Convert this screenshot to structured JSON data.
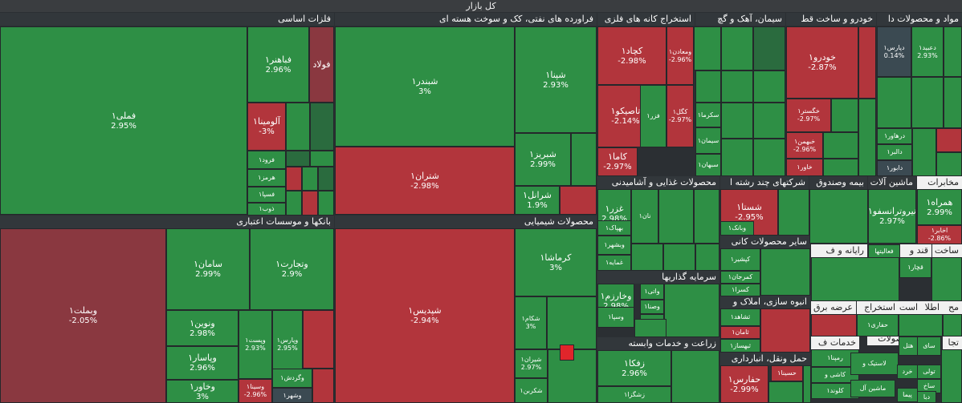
{
  "title": "کل بازار",
  "colors": {
    "green": "#2e8f45",
    "green_dark": "#2a6b3e",
    "red": "#b2353c",
    "red_dark": "#8a3840",
    "neutral": "#3b4a52",
    "bright_red": "#e0252b",
    "header_bg": "#32373b",
    "header_light": "#f1f1f1"
  },
  "sectors": [
    "فلزات اساسی",
    "فراورده های نفتی، کک و سوخت هسته ای",
    "استخراج کانه های فلزی",
    "سیمان، آهک و گچ",
    "خودرو و ساخت قط",
    "مواد و محصولات دا",
    "بانکها و موسسات اعتباری",
    "محصولات شیمیایی",
    "محصولات غذایی و آشامیدنی",
    "شرکتهای چند رشته ا",
    "بیمه وصندوق",
    "ماشین آلات",
    "مخابرات",
    "سایر محصولات کانی",
    "سرمایه گذاریها",
    "انبوه سازی، املاک و",
    "زراعت و خدمات وابسته",
    "حمل ونقل، انبارداری",
    "فلزات",
    "قند و",
    "رایانه و ف",
    "ساخت",
    "خدمات ف",
    "محصولات",
    "استخراج",
    "عرضه برق",
    "است",
    "اطلا",
    "مح",
    "تجا"
  ],
  "chart_data": {
    "type": "treemap",
    "title": "کل بازار",
    "unit": "%",
    "items": [
      {
        "sector": "فلزات اساسی",
        "symbol": "فملی۱",
        "value": 2.95
      },
      {
        "sector": "فلزات اساسی",
        "symbol": "فباهنر۱",
        "value": 2.96
      },
      {
        "sector": "فلزات اساسی",
        "symbol": "فولاد",
        "value": null
      },
      {
        "sector": "فلزات اساسی",
        "symbol": "آلومینا۱",
        "value": -3
      },
      {
        "sector": "فلزات اساسی",
        "symbol": "فرود۱",
        "value": null
      },
      {
        "sector": "فلزات اساسی",
        "symbol": "هرمز۱",
        "value": null
      },
      {
        "sector": "فلزات اساسی",
        "symbol": "فسپا۱",
        "value": null
      },
      {
        "sector": "فلزات اساسی",
        "symbol": "ذوب۱",
        "value": null
      },
      {
        "sector": "فراورده های نفتی، کک و سوخت هسته ای",
        "symbol": "شبندر۱",
        "value": 3
      },
      {
        "sector": "فراورده های نفتی، کک و سوخت هسته ای",
        "symbol": "شتران۱",
        "value": -2.98
      },
      {
        "sector": "فراورده های نفتی، کک و سوخت هسته ای",
        "symbol": "شپنا۱",
        "value": 2.93
      },
      {
        "sector": "فراورده های نفتی، کک و سوخت هسته ای",
        "symbol": "شبریز۱",
        "value": 2.99
      },
      {
        "sector": "فراورده های نفتی، کک و سوخت هسته ای",
        "symbol": "شرانل۱",
        "value": 1.9
      },
      {
        "sector": "استخراج کانه های فلزی",
        "symbol": "کچاد۱",
        "value": -2.98
      },
      {
        "sector": "استخراج کانه های فلزی",
        "symbol": "ومعادن۱",
        "value": -2.96
      },
      {
        "sector": "استخراج کانه های فلزی",
        "symbol": "تاصیکو۱",
        "value": -2.14
      },
      {
        "sector": "استخراج کانه های فلزی",
        "symbol": "فزر۱",
        "value": null
      },
      {
        "sector": "استخراج کانه های فلزی",
        "symbol": "کگل۱",
        "value": -2.97
      },
      {
        "sector": "استخراج کانه های فلزی",
        "symbol": "کاما۱",
        "value": -2.97
      },
      {
        "sector": "سیمان، آهک و گچ",
        "symbol": "سکرما۱",
        "value": null
      },
      {
        "sector": "سیمان، آهک و گچ",
        "symbol": "سیمان۱",
        "value": null
      },
      {
        "sector": "سیمان، آهک و گچ",
        "symbol": "سبهان۱",
        "value": null
      },
      {
        "sector": "خودرو و ساخت قط",
        "symbol": "خودرو۱",
        "value": -2.87
      },
      {
        "sector": "خودرو و ساخت قط",
        "symbol": "خگستر۱",
        "value": -2.97
      },
      {
        "sector": "خودرو و ساخت قط",
        "symbol": "خبهمن۱",
        "value": -2.96
      },
      {
        "sector": "خودرو و ساخت قط",
        "symbol": "خاور۱",
        "value": null
      },
      {
        "sector": "خودرو و ساخت قط",
        "symbol": "درهاور۱",
        "value": null
      },
      {
        "sector": "خودرو و ساخت قط",
        "symbol": "دالبر۱",
        "value": null
      },
      {
        "sector": "خودرو و ساخت قط",
        "symbol": "دابور۱",
        "value": null
      },
      {
        "sector": "مواد و محصولات دا",
        "symbol": "دپارس۱",
        "value": 0.14
      },
      {
        "sector": "مواد و محصولات دا",
        "symbol": "دعبید۱",
        "value": 2.93
      },
      {
        "sector": "بانکها و موسسات اعتباری",
        "symbol": "وبملت۱",
        "value": -2.05
      },
      {
        "sector": "بانکها و موسسات اعتباری",
        "symbol": "سامان۱",
        "value": 2.99
      },
      {
        "sector": "بانکها و موسسات اعتباری",
        "symbol": "وتجارت۱",
        "value": 2.9
      },
      {
        "sector": "بانکها و موسسات اعتباری",
        "symbol": "ونوین۱",
        "value": 2.98
      },
      {
        "sector": "بانکها و موسسات اعتباری",
        "symbol": "وپاسار۱",
        "value": 2.96
      },
      {
        "sector": "بانکها و موسسات اعتباری",
        "symbol": "وخاور۱",
        "value": 3
      },
      {
        "sector": "بانکها و موسسات اعتباری",
        "symbol": "وپست۱",
        "value": 2.93
      },
      {
        "sector": "بانکها و موسسات اعتباری",
        "symbol": "وپارس۱",
        "value": 2.95
      },
      {
        "sector": "بانکها و موسسات اعتباری",
        "symbol": "وسینا۱",
        "value": -2.96
      },
      {
        "sector": "بانکها و موسسات اعتباری",
        "symbol": "وگردش۱",
        "value": null
      },
      {
        "sector": "بانکها و موسسات اعتباری",
        "symbol": "وشهر۱",
        "value": null
      },
      {
        "sector": "محصولات شیمیایی",
        "symbol": "شپدیس۱",
        "value": -2.94
      },
      {
        "sector": "محصولات شیمیایی",
        "symbol": "کرماشا۱",
        "value": 3
      },
      {
        "sector": "محصولات شیمیایی",
        "symbol": "شکام۱",
        "value": 3
      },
      {
        "sector": "محصولات شیمیایی",
        "symbol": "شیران۱",
        "value": 2.97
      },
      {
        "sector": "محصولات شیمیایی",
        "symbol": "شکربن۱",
        "value": null
      },
      {
        "sector": "محصولات غذایی و آشامیدنی",
        "symbol": "غزر۱",
        "value": 2.98
      },
      {
        "sector": "محصولات غذایی و آشامیدنی",
        "symbol": "نان۱",
        "value": null
      },
      {
        "sector": "محصولات غذایی و آشامیدنی",
        "symbol": "بهپاک۱",
        "value": null
      },
      {
        "sector": "محصولات غذایی و آشامیدنی",
        "symbol": "وبشهر۱",
        "value": null
      },
      {
        "sector": "محصولات غذایی و آشامیدنی",
        "symbol": "غمایه۱",
        "value": null
      },
      {
        "sector": "شرکتهای چند رشته ا",
        "symbol": "شستا۱",
        "value": -2.95
      },
      {
        "sector": "شرکتهای چند رشته ا",
        "symbol": "وبانک۱",
        "value": null
      },
      {
        "sector": "ماشین آلات",
        "symbol": "نیروترانسفو۱",
        "value": 2.97
      },
      {
        "sector": "مخابرات",
        "symbol": "همراه۱",
        "value": 2.99
      },
      {
        "sector": "مخابرات",
        "symbol": "اخابر۱",
        "value": -2.86
      },
      {
        "sector": "سایر محصولات کانی",
        "symbol": "کپشیر۱",
        "value": null
      },
      {
        "sector": "سایر محصولات کانی",
        "symbol": "کمرجان۱",
        "value": null
      },
      {
        "sector": "سایر محصولات کانی",
        "symbol": "کسرا۱",
        "value": null
      },
      {
        "sector": "سرمایه گذاریها",
        "symbol": "وخارزم۱",
        "value": 2.98
      },
      {
        "sector": "سرمایه گذاریها",
        "symbol": "وسپا۱",
        "value": null
      },
      {
        "sector": "سرمایه گذاریها",
        "symbol": "واتی۱",
        "value": null
      },
      {
        "sector": "سرمایه گذاریها",
        "symbol": "وصنا۱",
        "value": null
      },
      {
        "sector": "سرمایه گذاریها",
        "symbol": "صبا۱",
        "value": null
      },
      {
        "sector": "انبوه سازی، املاک و",
        "symbol": "ثشاهد۱",
        "value": null
      },
      {
        "sector": "انبوه سازی، املاک و",
        "symbol": "ثامان۱",
        "value": null
      },
      {
        "sector": "انبوه سازی، املاک و",
        "symbol": "ثبهساز۱",
        "value": null
      },
      {
        "sector": "زراعت و خدمات وابسته",
        "symbol": "زفکا۱",
        "value": 2.96
      },
      {
        "sector": "زراعت و خدمات وابسته",
        "symbol": "زشگزا۱",
        "value": null
      },
      {
        "sector": "حمل ونقل، انبارداری",
        "symbol": "حفارس۱",
        "value": -2.99
      },
      {
        "sector": "حمل ونقل، انبارداری",
        "symbol": "حسینا۱",
        "value": null
      },
      {
        "sector": "فلزات",
        "symbol": "فعالیتها",
        "value": null
      },
      {
        "sector": "قند و",
        "symbol": "قچار۱",
        "value": null
      },
      {
        "sector": "استخراج",
        "symbol": "حفاری۱",
        "value": null
      },
      {
        "sector": "خدمات ف",
        "symbol": "رمپنا۱",
        "value": null
      },
      {
        "sector": "خدمات ف",
        "symbol": "کاشی و",
        "value": null
      },
      {
        "sector": "خدمات ف",
        "symbol": "کلوند۱",
        "value": null
      },
      {
        "sector": "محصولات",
        "symbol": "لاستیک و",
        "value": null
      },
      {
        "sector": "محصولات",
        "symbol": "ماشین آل",
        "value": null
      },
      {
        "sector": "عرضه برق",
        "symbol": "سای",
        "value": null
      },
      {
        "sector": "عرضه برق",
        "symbol": "هتل",
        "value": null
      },
      {
        "sector": "عرضه برق",
        "symbol": "خرد",
        "value": null
      },
      {
        "sector": "عرضه برق",
        "symbol": "تولی",
        "value": null
      },
      {
        "sector": "عرضه برق",
        "symbol": "ساخ",
        "value": null
      },
      {
        "sector": "عرضه برق",
        "symbol": "پیما",
        "value": null
      },
      {
        "sector": "عرضه برق",
        "symbol": "دبا",
        "value": null
      }
    ]
  }
}
